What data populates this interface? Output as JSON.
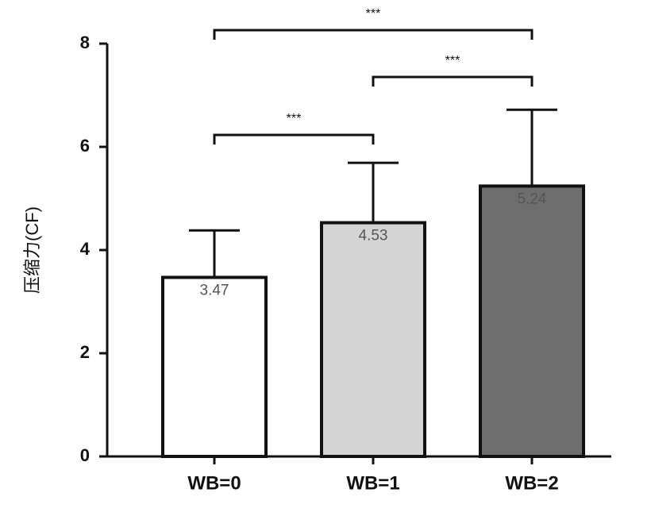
{
  "chart_data": {
    "type": "bar",
    "y_label": "压缩力(CF)",
    "categories": [
      "WB=0",
      "WB=1",
      "WB=2"
    ],
    "values": [
      3.47,
      4.53,
      5.24
    ],
    "errors": [
      0.91,
      1.16,
      1.48
    ],
    "colors": [
      "#ffffff",
      "#d4d4d4",
      "#6e6e6e"
    ],
    "ylim": [
      0,
      8
    ],
    "yticks": [
      0,
      2,
      4,
      6,
      8
    ],
    "significance": [
      {
        "from": 0,
        "to": 1,
        "label": "***"
      },
      {
        "from": 1,
        "to": 2,
        "label": "***"
      },
      {
        "from": 0,
        "to": 2,
        "label": "***"
      }
    ]
  }
}
